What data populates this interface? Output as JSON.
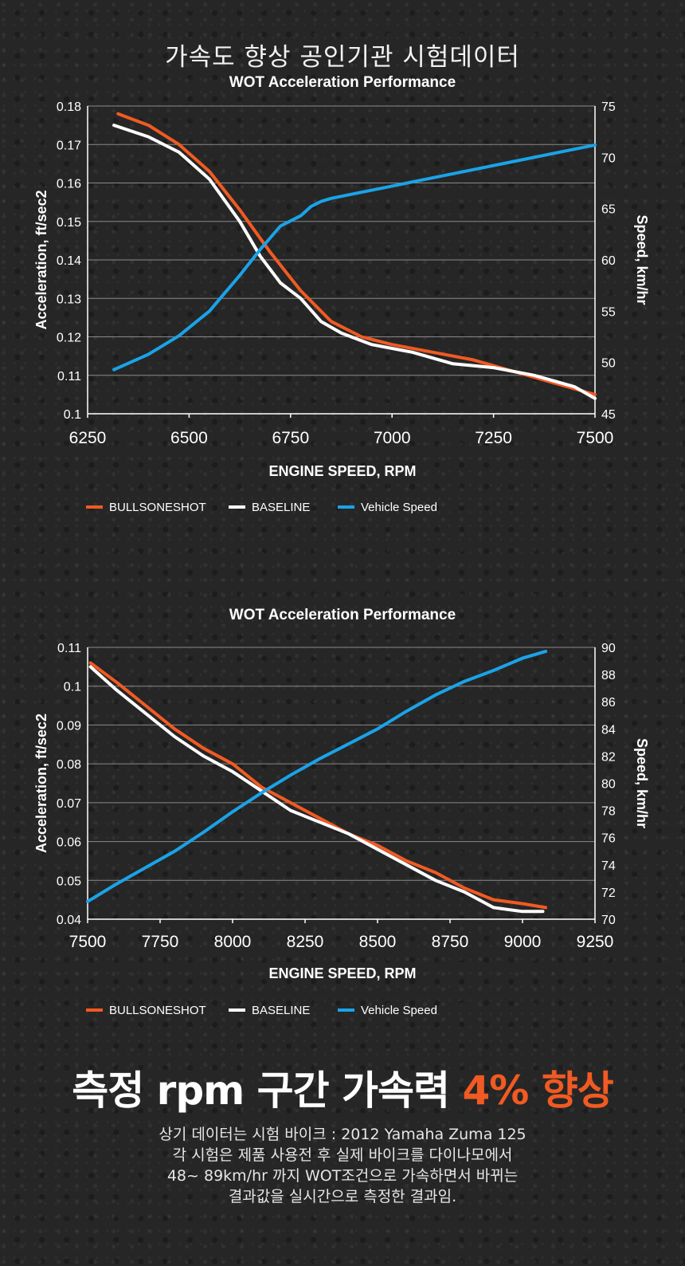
{
  "page": {
    "main_title": "가속도 향상 공인기관 시험데이터",
    "headline_prefix": "측정 rpm 구간 가속력 ",
    "headline_accent": "4% 향상",
    "description": [
      "상기 데이터는 시험 바이크 : 2012 Yamaha Zuma 125",
      "각 시험은 제품 사용전 후 실제 바이크를 다이나모에서",
      "48~ 89km/hr 까지 WOT조건으로 가속하면서 바뀌는",
      "결과값을 실시간으로 측정한 결과임."
    ]
  },
  "colors": {
    "bullsoneshot": "#f15a22",
    "baseline": "#ffffff",
    "vehicle_speed": "#1aa3e8",
    "grid": "#8a8a8a"
  },
  "chart_data": [
    {
      "type": "line",
      "title": "WOT Acceleration Performance",
      "xlabel": "ENGINE SPEED, RPM",
      "ylabel": "Acceleration, ft/sec2",
      "y2label": "Speed, km/hr",
      "xlim": [
        6250,
        7500
      ],
      "ylim": [
        0.1,
        0.18
      ],
      "y2lim": [
        45,
        75
      ],
      "x_ticks": [
        "6250",
        "6500",
        "6750",
        "7000",
        "7250",
        "7500"
      ],
      "y_ticks": [
        "0.18",
        "0.17",
        "0.16",
        "0.15",
        "0.14",
        "0.13",
        "0.12",
        "0.11",
        "0.1"
      ],
      "y2_ticks": [
        "75",
        "70",
        "65",
        "60",
        "55",
        "50",
        "45"
      ],
      "grid": true,
      "legend": [
        "BULLSONESHOT",
        "BASELINE",
        "Vehicle Speed"
      ],
      "series": [
        {
          "name": "BULLSONESHOT",
          "axis": "left",
          "x": [
            6325,
            6400,
            6475,
            6550,
            6625,
            6700,
            6775,
            6850,
            6925,
            7000,
            7100,
            7200,
            7300,
            7400,
            7500
          ],
          "values": [
            0.178,
            0.175,
            0.17,
            0.163,
            0.153,
            0.142,
            0.132,
            0.124,
            0.12,
            0.118,
            0.116,
            0.114,
            0.111,
            0.108,
            0.105
          ]
        },
        {
          "name": "BASELINE",
          "axis": "left",
          "x": [
            6315,
            6400,
            6475,
            6550,
            6625,
            6675,
            6725,
            6775,
            6825,
            6875,
            6950,
            7050,
            7150,
            7250,
            7350,
            7450,
            7500
          ],
          "values": [
            0.175,
            0.172,
            0.168,
            0.161,
            0.15,
            0.141,
            0.134,
            0.13,
            0.124,
            0.121,
            0.118,
            0.116,
            0.113,
            0.112,
            0.11,
            0.107,
            0.104
          ]
        },
        {
          "name": "Vehicle Speed",
          "axis": "right",
          "x": [
            6315,
            6400,
            6475,
            6550,
            6625,
            6675,
            6725,
            6775,
            6800,
            6825,
            6850,
            6900,
            7000,
            7100,
            7200,
            7300,
            7400,
            7500
          ],
          "values": [
            49.3,
            50.8,
            52.6,
            55.0,
            58.5,
            61.0,
            63.3,
            64.3,
            65.2,
            65.7,
            66.0,
            66.4,
            67.2,
            68.0,
            68.8,
            69.6,
            70.4,
            71.2
          ]
        }
      ]
    },
    {
      "type": "line",
      "title": "WOT Acceleration Performance",
      "xlabel": "ENGINE SPEED, RPM",
      "ylabel": "Acceleration, ft/sec2",
      "y2label": "Speed, km/hr",
      "xlim": [
        7500,
        9250
      ],
      "ylim": [
        0.04,
        0.11
      ],
      "y2lim": [
        70,
        90
      ],
      "x_ticks": [
        "7500",
        "7750",
        "8000",
        "8250",
        "8500",
        "8750",
        "9000",
        "9250"
      ],
      "y_ticks": [
        "0.11",
        "0.1",
        "0.09",
        "0.08",
        "0.07",
        "0.06",
        "0.05",
        "0.04"
      ],
      "y2_ticks": [
        "90",
        "88",
        "86",
        "84",
        "82",
        "80",
        "78",
        "76",
        "74",
        "72",
        "70"
      ],
      "grid": true,
      "legend": [
        "BULLSONESHOT",
        "BASELINE",
        "Vehicle Speed"
      ],
      "series": [
        {
          "name": "BULLSONESHOT",
          "axis": "left",
          "x": [
            7510,
            7600,
            7700,
            7800,
            7900,
            8000,
            8100,
            8200,
            8300,
            8400,
            8500,
            8600,
            8700,
            8800,
            8900,
            9000,
            9080
          ],
          "values": [
            0.106,
            0.101,
            0.095,
            0.089,
            0.084,
            0.08,
            0.074,
            0.07,
            0.066,
            0.062,
            0.059,
            0.055,
            0.052,
            0.048,
            0.045,
            0.044,
            0.043
          ]
        },
        {
          "name": "BASELINE",
          "axis": "left",
          "x": [
            7510,
            7600,
            7700,
            7800,
            7900,
            8000,
            8100,
            8200,
            8300,
            8400,
            8500,
            8600,
            8700,
            8800,
            8900,
            9000,
            9070
          ],
          "values": [
            0.105,
            0.099,
            0.093,
            0.087,
            0.082,
            0.078,
            0.073,
            0.068,
            0.065,
            0.062,
            0.058,
            0.054,
            0.05,
            0.047,
            0.043,
            0.042,
            0.042
          ]
        },
        {
          "name": "Vehicle Speed",
          "axis": "right",
          "x": [
            7500,
            7600,
            7700,
            7800,
            7900,
            8000,
            8100,
            8200,
            8300,
            8400,
            8500,
            8600,
            8700,
            8800,
            8900,
            9000,
            9080
          ],
          "values": [
            71.3,
            72.6,
            73.8,
            75.0,
            76.4,
            77.9,
            79.3,
            80.6,
            81.8,
            82.9,
            84.0,
            85.3,
            86.5,
            87.5,
            88.3,
            89.2,
            89.7
          ]
        }
      ]
    }
  ]
}
